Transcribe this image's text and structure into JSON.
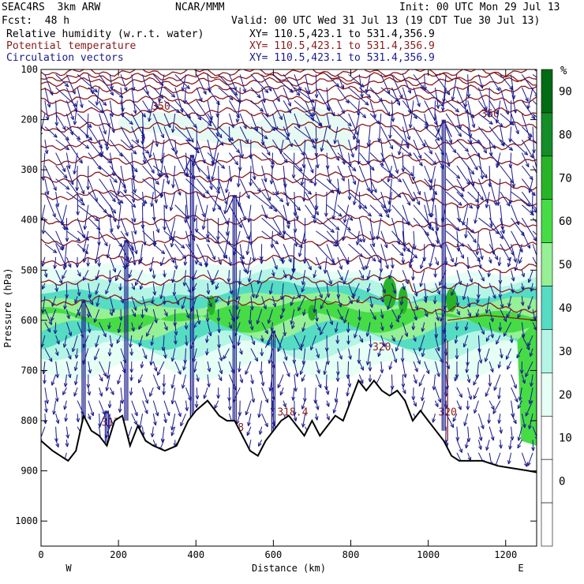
{
  "header": {
    "model": "SEAC4RS  3km ARW",
    "org": "NCAR/MMM",
    "init": "Init: 00 UTC Mon 29 Jul 13",
    "fcst": "Fcst:  48 h",
    "valid": "Valid: 00 UTC Wed 31 Jul 13 (19 CDT Tue 30 Jul 13)",
    "fields": [
      {
        "name": "Relative humidity (w.r.t. water)",
        "xy": "XY= 110.5,423.1 to 531.4,356.9",
        "color": "#000000"
      },
      {
        "name": "Potential temperature",
        "xy": "XY= 110.5,423.1 to 531.4,356.9",
        "color": "#8b1a1a"
      },
      {
        "name": "Circulation vectors",
        "xy": "XY= 110.5,423.1 to 531.4,356.9",
        "color": "#1a1a8b"
      }
    ]
  },
  "chart_data": {
    "type": "heatmap",
    "title": "",
    "xlabel": "Distance (km)",
    "ylabel": "Pressure (hPa)",
    "x_ticks": [
      0,
      200,
      400,
      600,
      800,
      1000,
      1200
    ],
    "xlim": [
      0,
      1280
    ],
    "y_ticks": [
      100,
      200,
      300,
      400,
      500,
      600,
      700,
      800,
      900,
      1000
    ],
    "ylim": [
      100,
      1050
    ],
    "y_inverted": true,
    "x_end_labels": {
      "left": "W",
      "right": "E"
    },
    "colorbar": {
      "unit": "%",
      "ticks": [
        0,
        10,
        20,
        30,
        40,
        50,
        60,
        70,
        80,
        90
      ],
      "colors": [
        "#ffffff",
        "#ffffff",
        "#ffffff",
        "#e6fff5",
        "#b4f5e6",
        "#55dcc2",
        "#96f096",
        "#46dc46",
        "#28b428",
        "#148c28",
        "#006c14"
      ]
    },
    "theta_labels": [
      "317",
      "318",
      "318.4",
      "320",
      "320",
      "350",
      "350"
    ],
    "terrain_pressure": [
      [
        0,
        840
      ],
      [
        30,
        860
      ],
      [
        50,
        870
      ],
      [
        70,
        880
      ],
      [
        90,
        860
      ],
      [
        110,
        790
      ],
      [
        130,
        820
      ],
      [
        150,
        830
      ],
      [
        170,
        850
      ],
      [
        190,
        800
      ],
      [
        210,
        790
      ],
      [
        230,
        850
      ],
      [
        250,
        810
      ],
      [
        270,
        840
      ],
      [
        290,
        850
      ],
      [
        320,
        860
      ],
      [
        350,
        850
      ],
      [
        380,
        800
      ],
      [
        400,
        780
      ],
      [
        430,
        760
      ],
      [
        460,
        790
      ],
      [
        480,
        800
      ],
      [
        500,
        800
      ],
      [
        520,
        830
      ],
      [
        540,
        860
      ],
      [
        560,
        870
      ],
      [
        580,
        840
      ],
      [
        600,
        820
      ],
      [
        620,
        800
      ],
      [
        640,
        790
      ],
      [
        660,
        810
      ],
      [
        680,
        830
      ],
      [
        700,
        800
      ],
      [
        720,
        830
      ],
      [
        740,
        810
      ],
      [
        760,
        790
      ],
      [
        780,
        800
      ],
      [
        800,
        760
      ],
      [
        820,
        720
      ],
      [
        840,
        740
      ],
      [
        860,
        720
      ],
      [
        880,
        740
      ],
      [
        900,
        750
      ],
      [
        920,
        740
      ],
      [
        940,
        760
      ],
      [
        960,
        800
      ],
      [
        980,
        780
      ],
      [
        1000,
        800
      ],
      [
        1020,
        820
      ],
      [
        1040,
        840
      ],
      [
        1060,
        870
      ],
      [
        1080,
        880
      ],
      [
        1100,
        880
      ],
      [
        1140,
        880
      ],
      [
        1180,
        890
      ],
      [
        1220,
        895
      ],
      [
        1260,
        900
      ],
      [
        1280,
        903
      ]
    ]
  }
}
